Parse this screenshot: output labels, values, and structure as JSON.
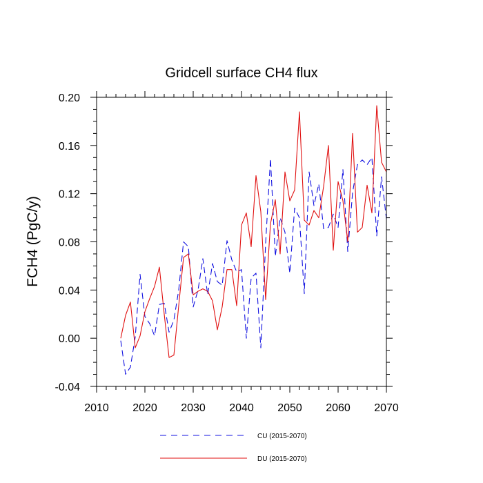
{
  "chart_data": {
    "type": "line",
    "title": "Gridcell surface CH4 flux",
    "xlabel": "",
    "ylabel": "FCH4  (PgC/y)",
    "xlim": [
      2010,
      2070
    ],
    "ylim": [
      -0.04,
      0.2
    ],
    "x_ticks": [
      2010,
      2020,
      2030,
      2040,
      2050,
      2060,
      2070
    ],
    "x_tick_labels": [
      "2010",
      "2020",
      "2030",
      "2040",
      "2050",
      "2060",
      "2070"
    ],
    "y_ticks": [
      -0.04,
      0.0,
      0.04,
      0.08,
      0.12,
      0.16,
      0.2
    ],
    "y_tick_labels": [
      "-0.04",
      "0.00",
      "0.04",
      "0.08",
      "0.12",
      "0.16",
      "0.20"
    ],
    "legend_position": "bottom",
    "series": [
      {
        "name": "CU (2015-2070)",
        "color": "#1010e0",
        "style": "dashed",
        "x": [
          2015,
          2016,
          2017,
          2018,
          2019,
          2020,
          2021,
          2022,
          2023,
          2024,
          2025,
          2026,
          2027,
          2028,
          2029,
          2030,
          2031,
          2032,
          2033,
          2034,
          2035,
          2036,
          2037,
          2038,
          2039,
          2040,
          2041,
          2042,
          2043,
          2044,
          2045,
          2046,
          2047,
          2048,
          2049,
          2050,
          2051,
          2052,
          2053,
          2054,
          2055,
          2056,
          2057,
          2058,
          2059,
          2060,
          2061,
          2062,
          2063,
          2064,
          2065,
          2066,
          2067,
          2068,
          2069,
          2070
        ],
        "values": [
          -0.002,
          -0.03,
          -0.024,
          0.001,
          0.053,
          0.018,
          0.012,
          0.002,
          0.028,
          0.029,
          0.005,
          0.015,
          0.04,
          0.08,
          0.076,
          0.026,
          0.04,
          0.066,
          0.036,
          0.062,
          0.047,
          0.044,
          0.081,
          0.065,
          0.055,
          0.057,
          0.0,
          0.05,
          0.054,
          -0.008,
          0.079,
          0.149,
          0.068,
          0.1,
          0.088,
          0.054,
          0.108,
          0.1,
          0.037,
          0.138,
          0.11,
          0.128,
          0.091,
          0.092,
          0.103,
          0.092,
          0.14,
          0.072,
          0.121,
          0.144,
          0.148,
          0.144,
          0.15,
          0.085,
          0.134,
          0.099
        ]
      },
      {
        "name": "DU (2015-2070)",
        "color": "#e01010",
        "style": "solid",
        "x": [
          2015,
          2016,
          2017,
          2018,
          2019,
          2020,
          2021,
          2022,
          2023,
          2024,
          2025,
          2026,
          2027,
          2028,
          2029,
          2030,
          2031,
          2032,
          2033,
          2034,
          2035,
          2036,
          2037,
          2038,
          2039,
          2040,
          2041,
          2042,
          2043,
          2044,
          2045,
          2046,
          2047,
          2048,
          2049,
          2050,
          2051,
          2052,
          2053,
          2054,
          2055,
          2056,
          2057,
          2058,
          2059,
          2060,
          2061,
          2062,
          2063,
          2064,
          2065,
          2066,
          2067,
          2068,
          2069,
          2070
        ],
        "values": [
          0.0,
          0.019,
          0.03,
          -0.008,
          0.002,
          0.022,
          0.033,
          0.043,
          0.059,
          0.02,
          -0.016,
          -0.014,
          0.027,
          0.067,
          0.07,
          0.036,
          0.039,
          0.041,
          0.039,
          0.031,
          0.007,
          0.026,
          0.057,
          0.057,
          0.027,
          0.094,
          0.104,
          0.076,
          0.135,
          0.105,
          0.032,
          0.095,
          0.115,
          0.07,
          0.138,
          0.114,
          0.123,
          0.188,
          0.098,
          0.094,
          0.106,
          0.1,
          0.126,
          0.16,
          0.073,
          0.13,
          0.114,
          0.08,
          0.17,
          0.088,
          0.092,
          0.127,
          0.104,
          0.193,
          0.146,
          0.138
        ]
      }
    ]
  }
}
